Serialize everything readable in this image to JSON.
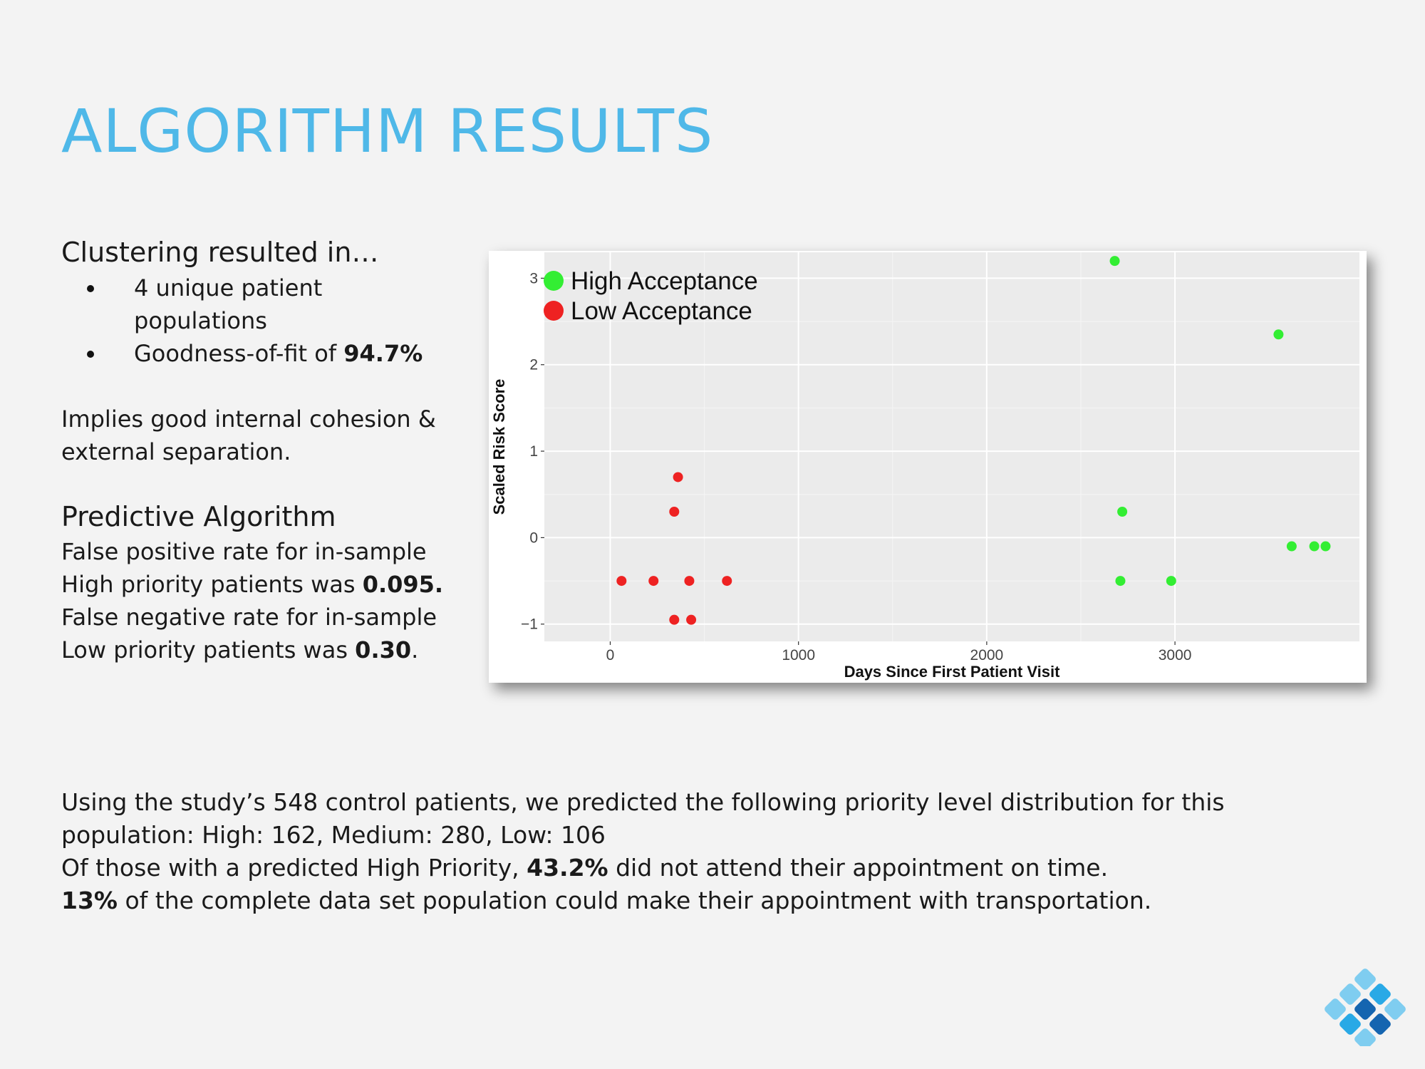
{
  "slide": {
    "title": "ALGORITHM RESULTS",
    "clustering": {
      "heading": "Clustering resulted in…",
      "bullet1_num": "4",
      "bullet1_text": " unique patient populations",
      "bullet2_text": "Goodness-of-fit of ",
      "bullet2_value": "94.7%"
    },
    "cohesion_text": "Implies good internal cohesion & external separation.",
    "predictive": {
      "heading": "Predictive Algorithm",
      "fp_text": "False positive rate for in-sample High priority patients was ",
      "fp_value": "0.095.",
      "fn_text": "False negative rate for in-sample Low priority patients was ",
      "fn_value": "0.30",
      "fn_end": "."
    },
    "bottom": {
      "line1": "Using the study’s 548 control patients, we predicted the following priority level distribution for this population: High: 162,  Medium: 280, Low: 106",
      "line2_pre": "Of those with a predicted High Priority, ",
      "line2_value": "43.2%",
      "line2_post": " did not attend their appointment on time.",
      "line3_value": "13%",
      "line3_post": " of the complete data set population could make their appointment with transportation."
    },
    "logo_colors": [
      "#7fcdf0",
      "#29a9e6",
      "#1565b0"
    ]
  },
  "chart_data": {
    "type": "scatter",
    "title": "",
    "xlabel": "Days Since First Patient Visit",
    "ylabel": "Scaled Risk Score",
    "xlim": [
      -350,
      3980
    ],
    "ylim": [
      -1.2,
      3.3
    ],
    "xticks": [
      0,
      1000,
      2000,
      3000
    ],
    "yticks": [
      -1,
      0,
      1,
      2,
      3
    ],
    "xtick_labels": [
      "0",
      "1000",
      "2000",
      "3000"
    ],
    "ytick_labels": [
      "−1",
      "0",
      "1",
      "2",
      "3"
    ],
    "grid": true,
    "legend_position": "top-left",
    "series": [
      {
        "name": "High Acceptance",
        "color": "#33ee33",
        "x": [
          2680,
          2720,
          2710,
          2980,
          3550,
          3620,
          3740,
          3800
        ],
        "y": [
          3.2,
          0.3,
          -0.5,
          -0.5,
          2.35,
          -0.1,
          -0.1,
          -0.1
        ]
      },
      {
        "name": "Low Acceptance",
        "color": "#ee2222",
        "x": [
          60,
          230,
          340,
          360,
          420,
          620,
          340,
          430
        ],
        "y": [
          -0.5,
          -0.5,
          0.3,
          0.7,
          -0.5,
          -0.5,
          -0.95,
          -0.95
        ]
      }
    ]
  }
}
